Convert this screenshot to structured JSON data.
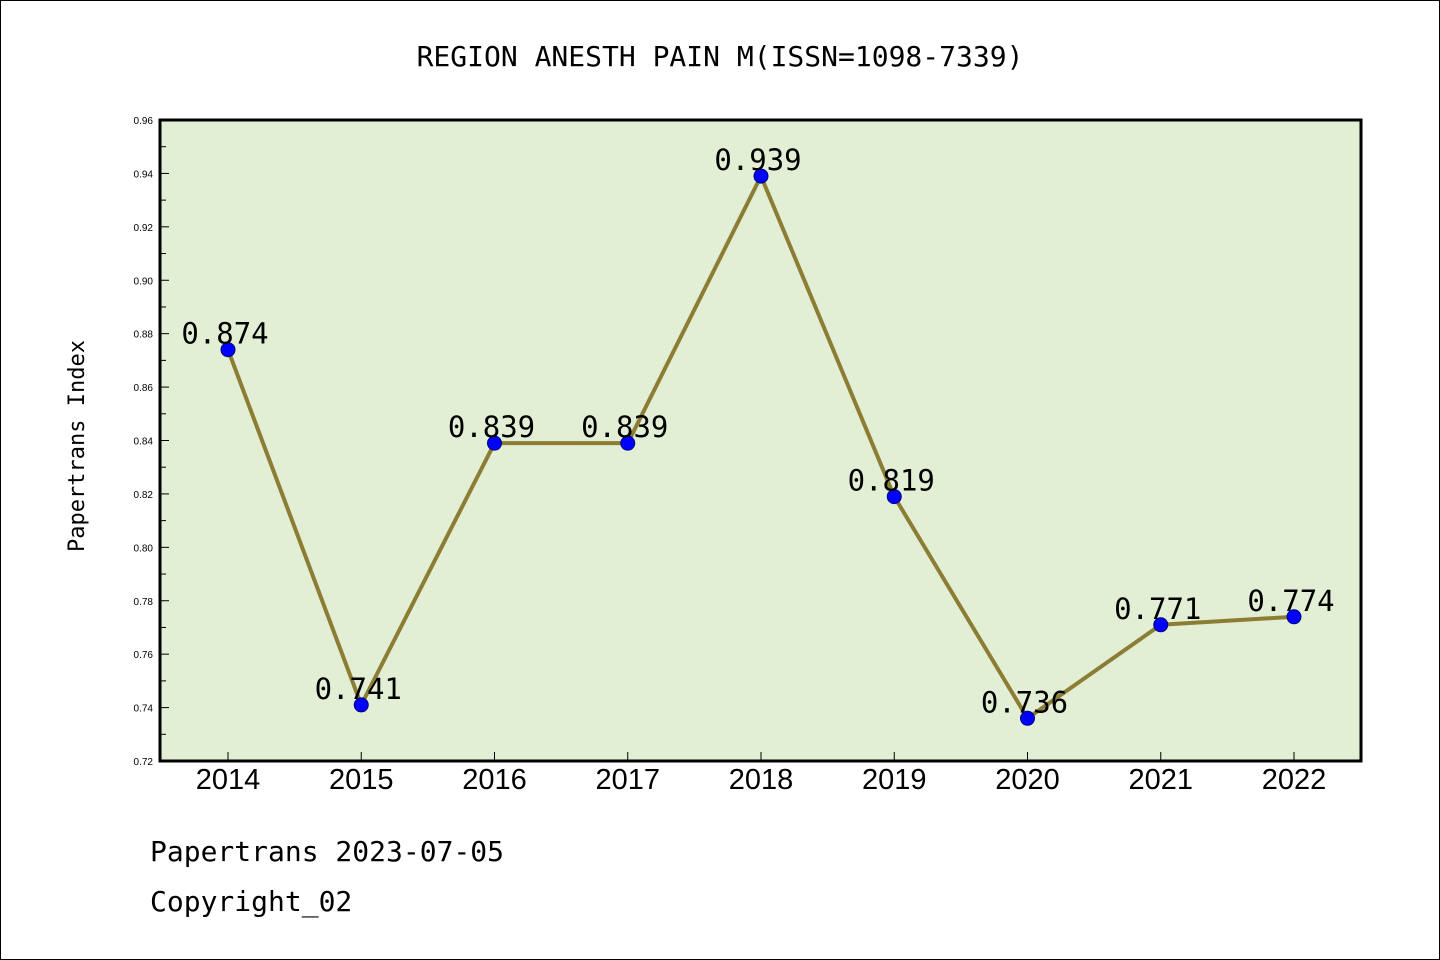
{
  "chart_data": {
    "type": "line",
    "title": "REGION ANESTH PAIN M(ISSN=1098-7339)",
    "xlabel": "",
    "ylabel": "Papertrans Index",
    "categories": [
      "2014",
      "2015",
      "2016",
      "2017",
      "2018",
      "2019",
      "2020",
      "2021",
      "2022"
    ],
    "series": [
      {
        "values": [
          0.874,
          0.741,
          0.839,
          0.839,
          0.939,
          0.819,
          0.736,
          0.771,
          0.774
        ]
      }
    ],
    "data_labels": [
      "0.874",
      "0.741",
      "0.839",
      "0.839",
      "0.939",
      "0.819",
      "0.736",
      "0.771",
      "0.774"
    ],
    "ylim": [
      0.72,
      0.96
    ],
    "yticks": [
      "0.72",
      "0.74",
      "0.76",
      "0.78",
      "0.80",
      "0.82",
      "0.84",
      "0.86",
      "0.88",
      "0.90",
      "0.92",
      "0.94",
      "0.96"
    ],
    "grid": false,
    "legend": "none",
    "colors": {
      "plot_background": "#e2efd5",
      "line": "#8c7d35",
      "marker": "#0000ff",
      "marker_edge": "#000080"
    }
  },
  "footer": {
    "line1": "Papertrans 2023-07-05",
    "line2": "Copyright_02"
  }
}
